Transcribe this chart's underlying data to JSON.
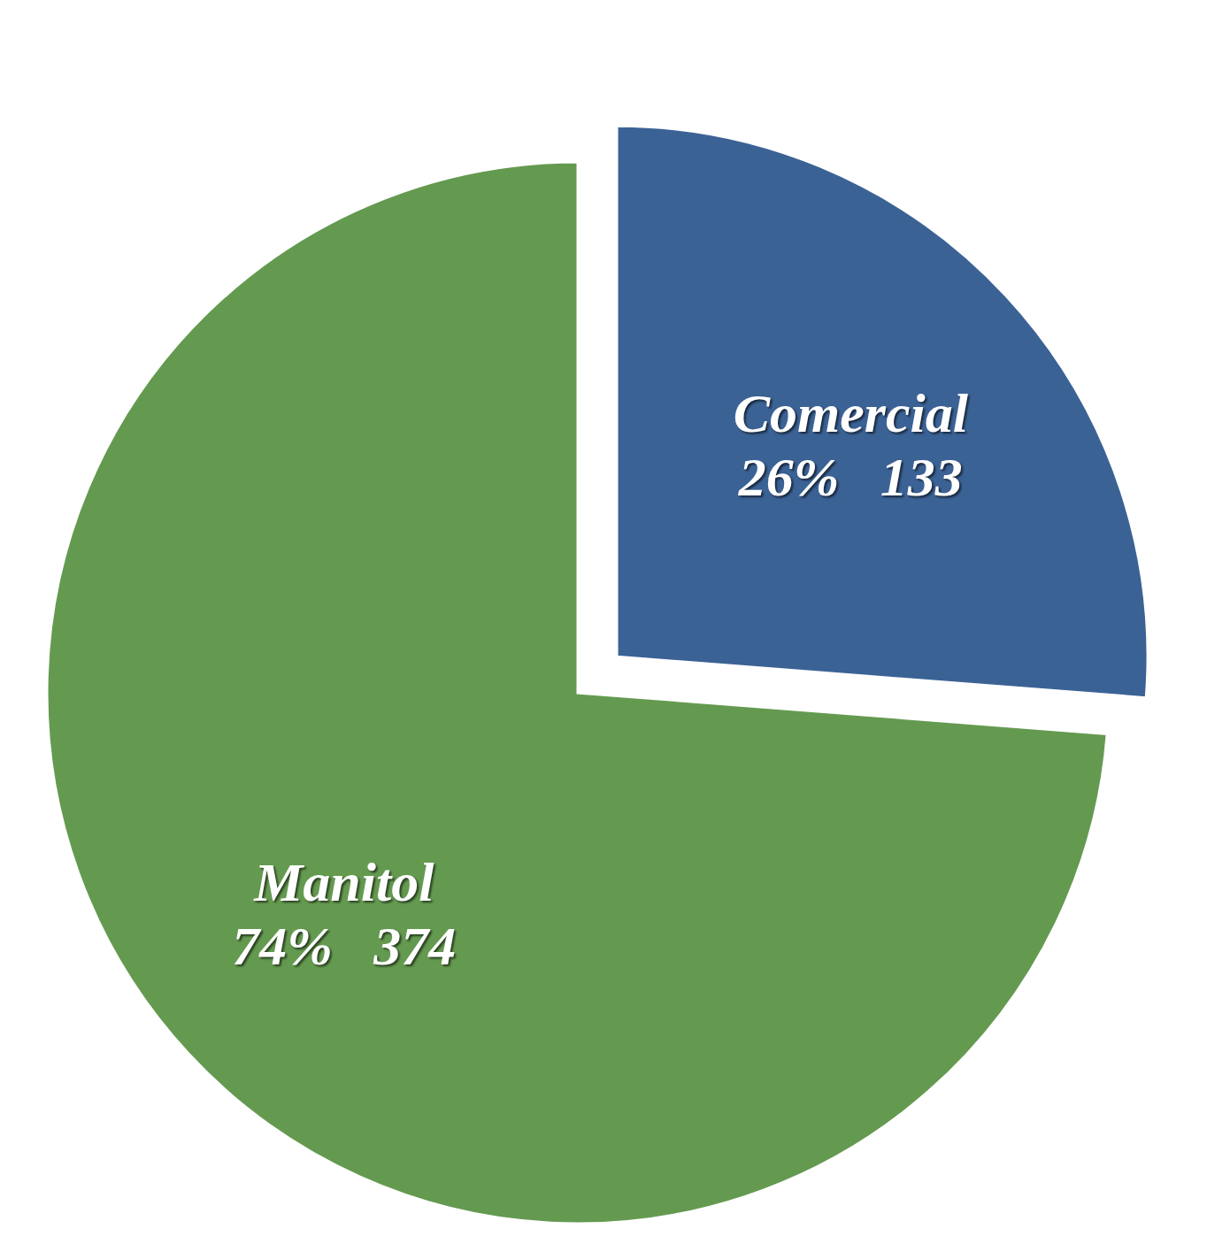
{
  "chart_data": {
    "type": "pie",
    "categories": [
      "Comercial",
      "Manitol"
    ],
    "values": [
      133,
      374
    ],
    "colors": [
      "#3b6295",
      "#649a50"
    ],
    "value_labels": [
      "26%   133",
      "74%   374"
    ]
  }
}
